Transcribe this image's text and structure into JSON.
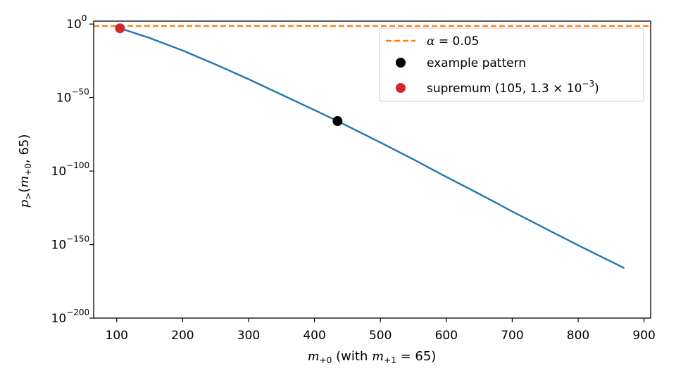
{
  "chart_data": {
    "type": "line",
    "xlabel": {
      "var": "m",
      "var_sub": "+0",
      "mid": " (with ",
      "var2": "m",
      "var2_sub": "+1",
      "eq": " = 65)"
    },
    "ylabel": {
      "p": "p",
      "p_sub": ">",
      "open": "(",
      "var": "m",
      "var_sub": "+0",
      "rest": ", 65)"
    },
    "xlim": [
      65,
      910
    ],
    "ylim_log10": [
      -200,
      2
    ],
    "yscale": "log",
    "grid": false,
    "x_ticks": [
      100,
      200,
      300,
      400,
      500,
      600,
      700,
      800,
      900
    ],
    "x_tick_labels": [
      "100",
      "200",
      "300",
      "400",
      "500",
      "600",
      "700",
      "800",
      "900"
    ],
    "y_ticks_log10": [
      0,
      -50,
      -100,
      -150,
      -200
    ],
    "y_tick_base": "10",
    "y_tick_exponents": [
      "0",
      "−50",
      "−100",
      "−150",
      "−200"
    ],
    "series": [
      {
        "kind": "line",
        "color": "#1f77b4",
        "x": [
          105,
          150,
          200,
          250,
          300,
          350,
          400,
          435,
          500,
          550,
          600,
          650,
          700,
          750,
          800,
          870
        ],
        "y_log10": [
          -2.9,
          -9.5,
          -18,
          -27.5,
          -37.5,
          -48,
          -58.5,
          -66,
          -80.5,
          -92,
          -104,
          -115.5,
          -127.5,
          -139,
          -150.5,
          -166
        ]
      },
      {
        "kind": "hline",
        "name": "α = 0.05",
        "color": "#ff7f0e",
        "y_log10": -1.301
      },
      {
        "kind": "point",
        "name": "example pattern",
        "color": "#000000",
        "x": 435,
        "y_log10": -66
      },
      {
        "kind": "point",
        "name": "supremum (105,  1.3 × 10−3)",
        "color": "#d62728",
        "x": 105,
        "y_log10": -2.9
      }
    ],
    "legend": {
      "placement": "top-right",
      "entries": [
        {
          "marker": "dashed-line",
          "color": "#ff7f0e",
          "alpha": "α",
          "eq": " = 0.05"
        },
        {
          "marker": "dot",
          "color": "#000000",
          "text": "example pattern"
        },
        {
          "marker": "dot",
          "color": "#d62728",
          "pre": "supremum (105,  1.3 × 10",
          "exp": "−3",
          "post": ")"
        }
      ]
    }
  }
}
